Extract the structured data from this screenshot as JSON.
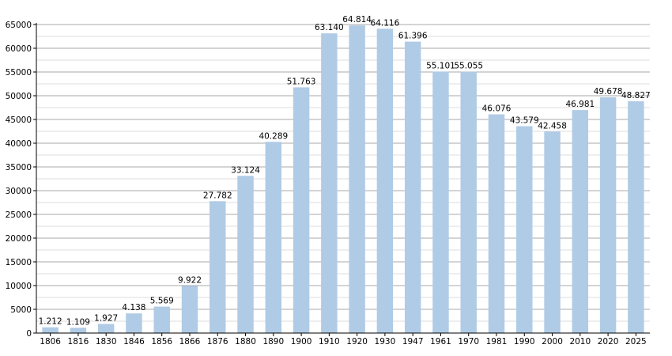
{
  "chart_data": {
    "type": "bar",
    "title": "",
    "xlabel": "",
    "ylabel": "",
    "categories": [
      "1806",
      "1816",
      "1830",
      "1846",
      "1856",
      "1866",
      "1876",
      "1880",
      "1890",
      "1900",
      "1910",
      "1920",
      "1930",
      "1947",
      "1961",
      "1970",
      "1981",
      "1990",
      "2000",
      "2010",
      "2020",
      "2025"
    ],
    "values": [
      1212,
      1109,
      1927,
      4138,
      5569,
      9922,
      27782,
      33124,
      40289,
      51763,
      63140,
      64814,
      64116,
      61396,
      55101,
      55055,
      46076,
      43579,
      42458,
      46981,
      49678,
      48827
    ],
    "value_labels": [
      "1.212",
      "1.109",
      "1.927",
      "4.138",
      "5.569",
      "9.922",
      "27.782",
      "33.124",
      "40.289",
      "51.763",
      "63.140",
      "64.814",
      "64.116",
      "61.396",
      "55.101",
      "55.055",
      "46.076",
      "43.579",
      "42.458",
      "46.981",
      "49.678",
      "48.827"
    ],
    "y_ticks": [
      0,
      5000,
      10000,
      15000,
      20000,
      25000,
      30000,
      35000,
      40000,
      45000,
      50000,
      55000,
      60000,
      65000
    ],
    "y_tick_labels": [
      "0",
      "5000",
      "10000",
      "15000",
      "20000",
      "25000",
      "30000",
      "35000",
      "40000",
      "45000",
      "50000",
      "55000",
      "60000",
      "65000"
    ],
    "ylim": [
      0,
      65000
    ],
    "grid": true,
    "minor_grid": true,
    "legend": "none",
    "colors": {
      "bar": "#b0cbe5",
      "major_grid": "#a9a9a9",
      "minor_grid": "#dcdcdc",
      "axis": "#000000"
    }
  }
}
